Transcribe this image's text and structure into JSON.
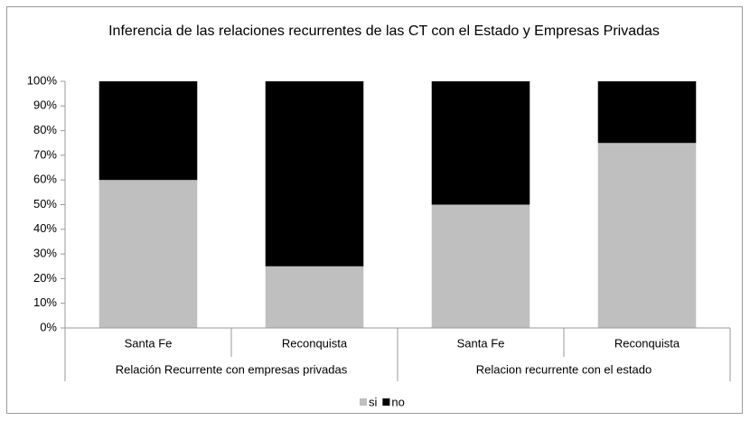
{
  "chart_data": {
    "type": "stacked_bar_100",
    "title": "Inferencia de las relaciones recurrentes de las CT con el Estado y Empresas Privadas",
    "categories": [
      "Santa Fe",
      "Reconquista",
      "Santa Fe",
      "Reconquista"
    ],
    "groups": [
      "Relación Recurrente con empresas privadas",
      "Relacion recurrente con el estado"
    ],
    "series": [
      {
        "name": "si",
        "color": "#bfbfbf",
        "values": [
          60,
          25,
          50,
          75
        ]
      },
      {
        "name": "no",
        "color": "#000000",
        "values": [
          40,
          75,
          50,
          25
        ]
      }
    ],
    "ylim": [
      0,
      100
    ],
    "yticks": [
      {
        "value": 0,
        "label": "0%"
      },
      {
        "value": 10,
        "label": "10%"
      },
      {
        "value": 20,
        "label": "20%"
      },
      {
        "value": 30,
        "label": "30%"
      },
      {
        "value": 40,
        "label": "40%"
      },
      {
        "value": 50,
        "label": "50%"
      },
      {
        "value": 60,
        "label": "60%"
      },
      {
        "value": 70,
        "label": "70%"
      },
      {
        "value": 80,
        "label": "80%"
      },
      {
        "value": 90,
        "label": "90%"
      },
      {
        "value": 100,
        "label": "100%"
      }
    ],
    "legend": "bottom"
  }
}
